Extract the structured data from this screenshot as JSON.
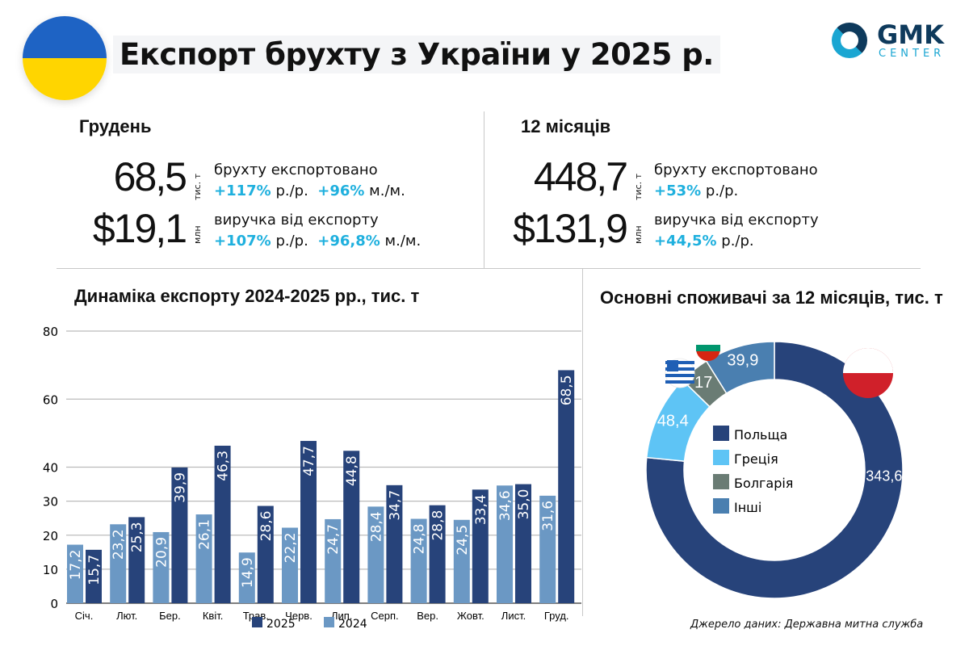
{
  "header": {
    "title": "Експорт брухту з України у 2025 р.",
    "logo_main": "GMK",
    "logo_sub": "CENTER"
  },
  "december": {
    "label": "Грудень",
    "volume": "68,5",
    "volume_unit": "тис. т",
    "volume_desc": "брухту експортовано",
    "volume_yoy": "+117%",
    "yoy_suffix": "р./р.",
    "volume_mom": "+96%",
    "mom_suffix": "м./м.",
    "revenue": "$19,1",
    "revenue_unit": "млн",
    "revenue_desc": "виручка від експорту",
    "revenue_yoy": "+107%",
    "revenue_mom": "+96,8%"
  },
  "year": {
    "label": "12 місяців",
    "volume": "448,7",
    "volume_unit": "тис. т",
    "volume_desc": "брухту експортовано",
    "volume_yoy": "+53%",
    "yoy_suffix": "р./р.",
    "revenue": "$131,9",
    "revenue_unit": "млн",
    "revenue_desc": "виручка від експорту",
    "revenue_yoy": "+44,5%"
  },
  "source": "Джерело даних: Державна митна служба",
  "colors": {
    "dark": "#27437a",
    "light": "#6b98c4",
    "accent": "#1fb0de"
  },
  "chart_data": [
    {
      "type": "bar",
      "title": "Динаміка експорту 2024-2025 рр., тис. т",
      "categories": [
        "Січ.",
        "Лют.",
        "Бер.",
        "Квіт.",
        "Трав.",
        "Черв.",
        "Лип.",
        "Серп.",
        "Вер.",
        "Жовт.",
        "Лист.",
        "Груд."
      ],
      "series": [
        {
          "name": "2024",
          "color": "#6b98c4",
          "values": [
            17.2,
            23.2,
            20.9,
            26.1,
            14.9,
            22.2,
            24.7,
            28.4,
            24.8,
            24.5,
            34.6,
            31.6
          ],
          "labels": [
            "17,2",
            "23,2",
            "20,9",
            "26,1",
            "14,9",
            "22,2",
            "24,7",
            "28,4",
            "24,8",
            "24,5",
            "34,6",
            "31,6"
          ]
        },
        {
          "name": "2025",
          "color": "#27437a",
          "values": [
            15.7,
            25.3,
            39.9,
            46.3,
            28.6,
            47.7,
            44.8,
            34.7,
            28.8,
            33.4,
            35.0,
            68.5
          ],
          "labels": [
            "15,7",
            "25,3",
            "39,9",
            "46,3",
            "28,6",
            "47,7",
            "44,8",
            "34,7",
            "28,8",
            "33,4",
            "35,0",
            "68,5"
          ]
        }
      ],
      "legend_order": [
        "2025",
        "2024"
      ],
      "ylim": [
        0,
        80
      ],
      "yticks": [
        "0",
        "10",
        "20",
        "30",
        "40",
        "50",
        "60",
        "70",
        "80"
      ],
      "yticks_shown": [
        0,
        10,
        20,
        30,
        40,
        60,
        80
      ],
      "legend": "bottom"
    },
    {
      "type": "pie",
      "title": "Основні споживачі за 12 місяців, тис. т",
      "slices": [
        {
          "name": "Польща",
          "value": 343.6,
          "label": "343,6",
          "color": "#27437a"
        },
        {
          "name": "Греція",
          "value": 48.4,
          "label": "48,4",
          "color": "#5ec4f5"
        },
        {
          "name": "Болгарія",
          "value": 17,
          "label": "17",
          "color": "#6a7c74"
        },
        {
          "name": "Інші",
          "value": 39.9,
          "label": "39,9",
          "color": "#4a7fb0"
        }
      ],
      "legend": "center"
    }
  ]
}
